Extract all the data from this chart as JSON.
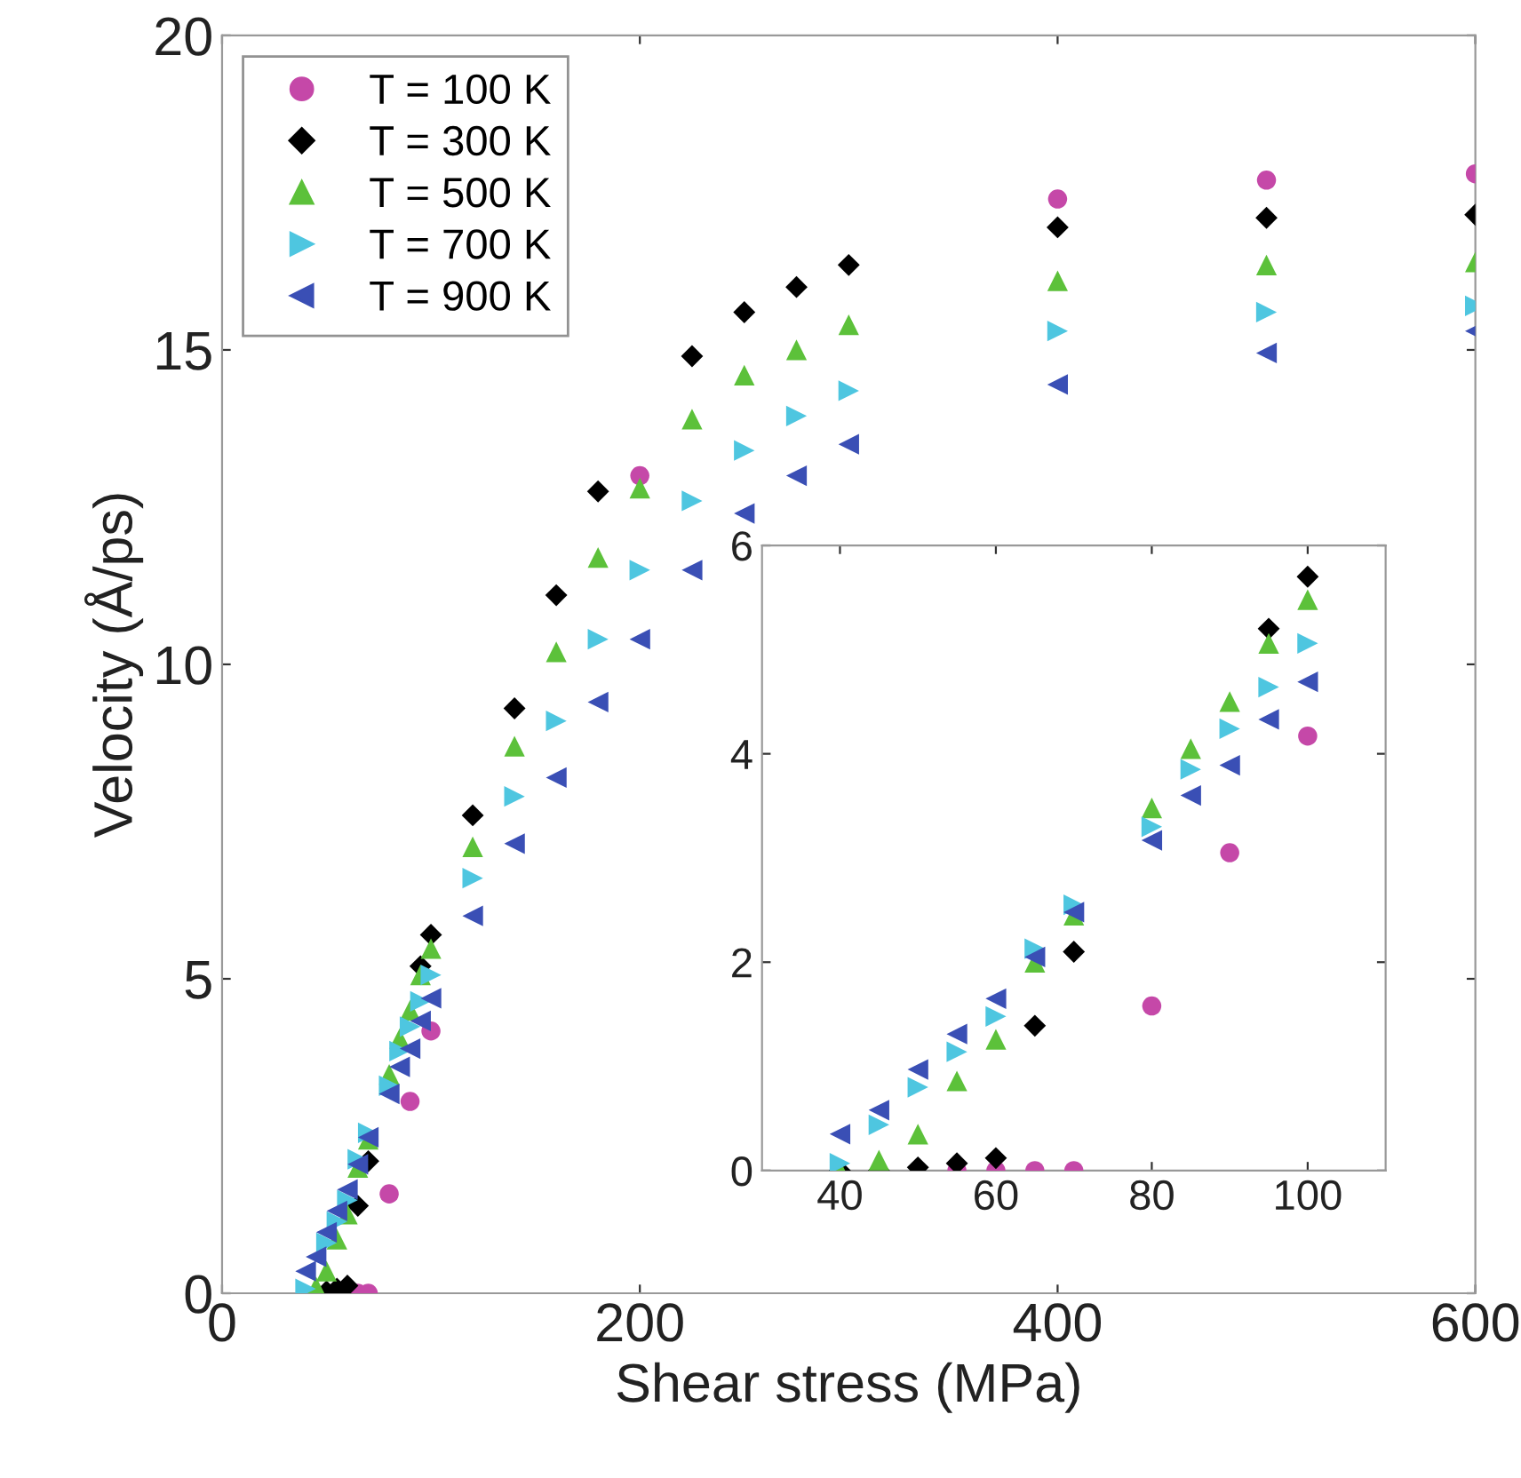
{
  "chart_data": [
    {
      "type": "scatter",
      "xlabel": "Shear stress (MPa)",
      "ylabel": "Velocity (Å/ps)",
      "xlim": [
        0,
        600
      ],
      "xticks": [
        0,
        200,
        400,
        600
      ],
      "ylim": [
        0,
        20
      ],
      "yticks": [
        0,
        5,
        10,
        15,
        20
      ],
      "grid": false,
      "legend": "top left",
      "series": [
        {
          "name": "T = 100 K",
          "color": "#c548a8",
          "marker": "circle",
          "x": [
            65,
            70,
            80,
            90,
            100,
            200,
            400,
            500,
            600
          ],
          "values": [
            0,
            0,
            1.58,
            3.05,
            4.17,
            13.0,
            17.4,
            17.7,
            17.8
          ]
        },
        {
          "name": "T = 300 K",
          "color": "#000000",
          "marker": "diamond",
          "x": [
            50,
            55,
            60,
            65,
            70,
            95,
            100,
            120,
            140,
            160,
            180,
            225,
            250,
            275,
            300,
            400,
            500,
            600
          ],
          "values": [
            0.03,
            0.07,
            0.12,
            1.39,
            2.1,
            5.2,
            5.7,
            7.6,
            9.3,
            11.1,
            12.75,
            14.9,
            15.6,
            16.0,
            16.35,
            16.95,
            17.1,
            17.15
          ]
        },
        {
          "name": "T = 500 K",
          "color": "#5cc13a",
          "marker": "triangle",
          "x": [
            45,
            50,
            55,
            60,
            65,
            70,
            80,
            85,
            90,
            95,
            100,
            120,
            140,
            160,
            180,
            200,
            225,
            250,
            275,
            300,
            400,
            500,
            600
          ],
          "values": [
            0.1,
            0.35,
            0.86,
            1.26,
            2.0,
            2.45,
            3.48,
            4.05,
            4.5,
            5.06,
            5.48,
            7.1,
            8.7,
            10.2,
            11.7,
            12.8,
            13.9,
            14.6,
            15.0,
            15.4,
            16.1,
            16.35,
            16.4
          ]
        },
        {
          "name": "T = 700 K",
          "color": "#4ec6e0",
          "marker": "triangle-right",
          "x": [
            40,
            45,
            50,
            55,
            60,
            65,
            70,
            80,
            85,
            90,
            95,
            100,
            120,
            140,
            160,
            180,
            200,
            225,
            250,
            275,
            300,
            400,
            500,
            600
          ],
          "values": [
            0.07,
            null,
            0.8,
            1.14,
            1.48,
            2.13,
            2.55,
            3.3,
            3.85,
            4.24,
            4.64,
            5.06,
            6.6,
            7.9,
            9.1,
            10.4,
            11.5,
            12.6,
            13.4,
            13.95,
            14.35,
            15.3,
            15.6,
            15.7
          ]
        },
        {
          "name": "T = 900 K",
          "color": "#3a4fb5",
          "marker": "triangle-left",
          "x": [
            40,
            45,
            50,
            55,
            60,
            65,
            70,
            80,
            85,
            90,
            95,
            100,
            120,
            140,
            160,
            180,
            200,
            225,
            250,
            275,
            300,
            400,
            500,
            600
          ],
          "values": [
            0.35,
            0.58,
            0.97,
            1.31,
            1.65,
            2.05,
            2.48,
            3.17,
            3.6,
            3.89,
            4.33,
            4.69,
            6.0,
            7.15,
            8.2,
            9.4,
            10.4,
            11.5,
            12.4,
            13.0,
            13.5,
            14.45,
            14.95,
            15.3
          ]
        }
      ]
    },
    {
      "type": "scatter",
      "xlim": [
        30,
        110
      ],
      "xticks": [
        40,
        60,
        80,
        100
      ],
      "ylim": [
        0,
        6
      ],
      "yticks": [
        0,
        2,
        4,
        6
      ],
      "grid": false,
      "legend": false,
      "series": [
        {
          "color": "#c548a8",
          "marker": "circle",
          "x": [
            55,
            60,
            65,
            70,
            80,
            90,
            100
          ],
          "values": [
            0,
            0,
            0,
            0,
            1.58,
            3.05,
            4.17
          ]
        },
        {
          "color": "#000000",
          "marker": "diamond",
          "x": [
            40,
            45,
            50,
            55,
            60,
            65,
            70,
            95,
            100
          ],
          "values": [
            0,
            0,
            0.03,
            0.07,
            0.12,
            1.39,
            2.1,
            5.2,
            5.7
          ]
        },
        {
          "color": "#5cc13a",
          "marker": "triangle",
          "x": [
            40,
            45,
            50,
            55,
            60,
            65,
            70,
            80,
            85,
            90,
            95,
            100
          ],
          "values": [
            0,
            0.1,
            0.35,
            0.86,
            1.26,
            2.0,
            2.45,
            3.48,
            4.05,
            4.5,
            5.06,
            5.48
          ]
        },
        {
          "color": "#4ec6e0",
          "marker": "triangle-right",
          "x": [
            40,
            45,
            50,
            55,
            60,
            65,
            70,
            80,
            85,
            90,
            95,
            100
          ],
          "values": [
            0.07,
            0.44,
            0.8,
            1.14,
            1.48,
            2.13,
            2.55,
            3.3,
            3.85,
            4.24,
            4.64,
            5.06
          ]
        },
        {
          "color": "#3a4fb5",
          "marker": "triangle-left",
          "x": [
            40,
            45,
            50,
            55,
            60,
            65,
            70,
            80,
            85,
            90,
            95,
            100
          ],
          "values": [
            0.35,
            0.58,
            0.97,
            1.31,
            1.65,
            2.05,
            2.48,
            3.17,
            3.6,
            3.89,
            4.33,
            4.69
          ]
        }
      ]
    }
  ]
}
